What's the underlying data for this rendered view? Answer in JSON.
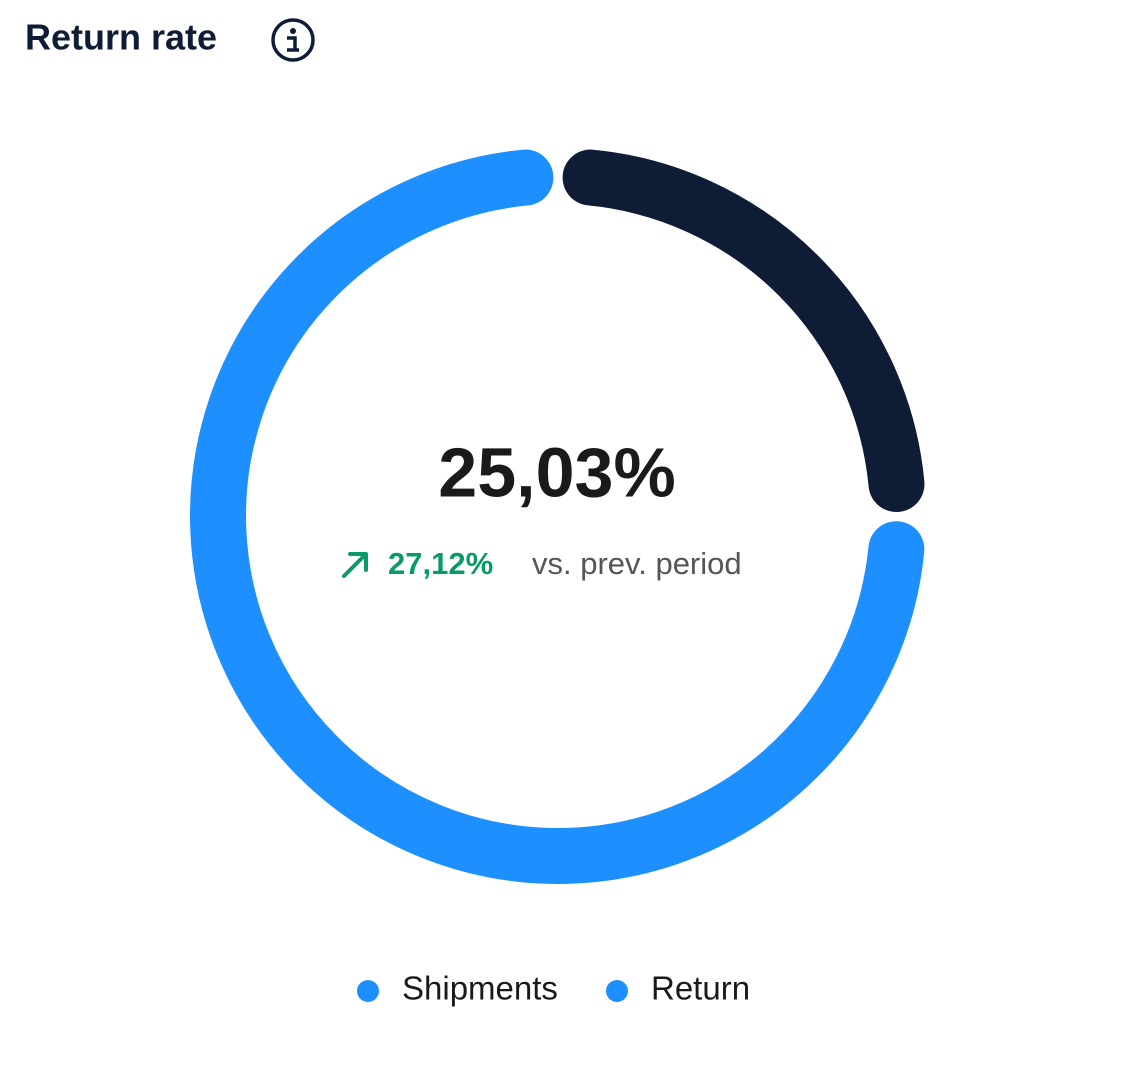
{
  "chart_data": {
    "type": "donut",
    "title": "Return rate",
    "center_label": "25,03%",
    "change_label": "27,12%",
    "change_note": "vs. prev. period",
    "categories": [
      "Shipments",
      "Return"
    ],
    "values": [
      74.97,
      25.03
    ],
    "colors": [
      "#1e8fff",
      "#0f1c36"
    ],
    "legend_marker_color": "#1e8fff"
  }
}
